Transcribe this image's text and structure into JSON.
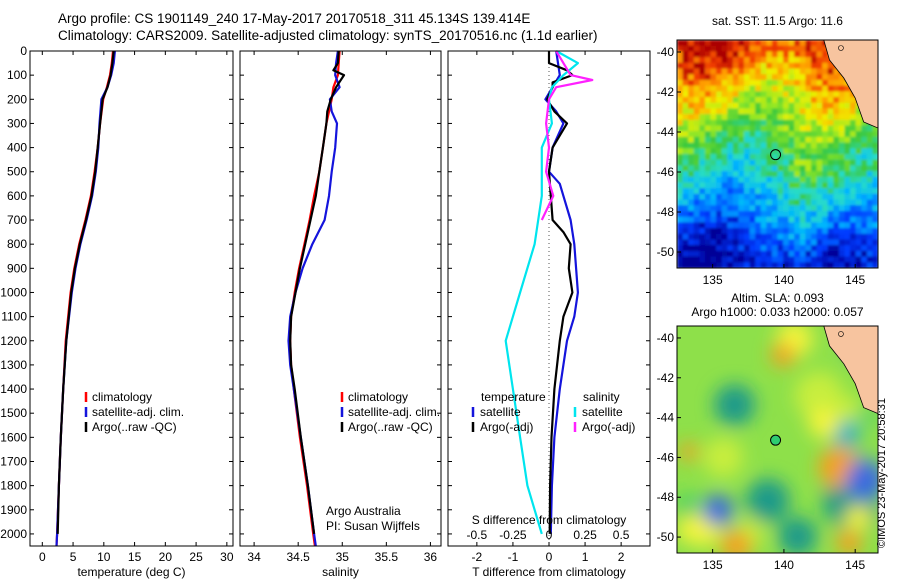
{
  "header": {
    "line1": "Argo profile: CS 1901149_240 17-May-2017 20170518_311 45.134S 139.414E",
    "line2": "Climatology: CARS2009. Satellite-adjusted climatology: synTS_20170516.nc (1.1d earlier)"
  },
  "depth_ticks": [
    "0",
    "100",
    "200",
    "300",
    "400",
    "500",
    "600",
    "700",
    "800",
    "900",
    "1000",
    "1100",
    "1200",
    "1300",
    "1400",
    "1500",
    "1600",
    "1700",
    "1800",
    "1900",
    "2000"
  ],
  "colors": {
    "climatology": "#ff0000",
    "satellite": "#1414dc",
    "argo": "#000000",
    "sal_satellite": "#00e5ee",
    "sal_argo": "#ff20ff"
  },
  "chart_data": [
    {
      "type": "line",
      "panel": "temperature",
      "xlabel": "temperature (deg C)",
      "xticks": [
        "0",
        "5",
        "10",
        "15",
        "20",
        "25",
        "30"
      ],
      "xlim": [
        -2,
        31
      ],
      "ylim": [
        2050,
        0
      ],
      "legend": [
        "climatology",
        "satellite-adj. clim.",
        "Argo(..raw -QC)"
      ],
      "series": [
        {
          "name": "climatology",
          "depth": [
            0,
            50,
            100,
            150,
            200,
            300,
            400,
            500,
            600,
            700,
            800,
            900,
            1000,
            1200,
            1400,
            1600,
            1800,
            2000,
            2050
          ],
          "values": [
            11.5,
            11.3,
            11.0,
            10.5,
            9.9,
            9.4,
            9.0,
            8.5,
            7.9,
            7.0,
            6.0,
            5.2,
            4.6,
            3.8,
            3.4,
            3.0,
            2.7,
            2.4,
            2.3
          ]
        },
        {
          "name": "satellite-adj. clim.",
          "depth": [
            0,
            50,
            100,
            150,
            200,
            300,
            400,
            500,
            600,
            700,
            800,
            900,
            1000,
            1200,
            1400,
            1600,
            1800,
            2000,
            2050
          ],
          "values": [
            11.8,
            11.6,
            11.2,
            10.6,
            9.6,
            9.3,
            9.1,
            8.7,
            8.1,
            7.2,
            6.2,
            5.4,
            4.8,
            3.9,
            3.4,
            3.0,
            2.7,
            2.4,
            2.3
          ]
        },
        {
          "name": "Argo(..raw -QC)",
          "depth": [
            0,
            50,
            100,
            150,
            200,
            300,
            400,
            500,
            600,
            700,
            800,
            900,
            1000,
            1200,
            1400,
            1600,
            1800,
            2000
          ],
          "values": [
            11.6,
            11.4,
            11.1,
            10.6,
            9.8,
            9.4,
            9.0,
            8.6,
            8.0,
            7.1,
            6.1,
            5.3,
            4.7,
            3.9,
            3.4,
            3.0,
            2.7,
            2.5
          ]
        }
      ]
    },
    {
      "type": "line",
      "panel": "salinity",
      "xlabel": "salinity",
      "xticks": [
        "34",
        "34.5",
        "35",
        "35.5",
        "36"
      ],
      "xlim": [
        33.84,
        36.12
      ],
      "ylim": [
        2050,
        0
      ],
      "legend": [
        "climatology",
        "satellite-adj. clim.",
        "Argo(..raw -QC)"
      ],
      "annotation": [
        "Argo Australia",
        "PI: Susan Wijffels"
      ],
      "series": [
        {
          "name": "climatology",
          "depth": [
            0,
            50,
            100,
            150,
            200,
            300,
            400,
            500,
            600,
            700,
            800,
            900,
            1000,
            1100,
            1200,
            1300,
            1400,
            1600,
            1800,
            2000,
            2050
          ],
          "values": [
            34.97,
            34.96,
            34.95,
            34.9,
            34.88,
            34.82,
            34.78,
            34.74,
            34.68,
            34.63,
            34.57,
            34.51,
            34.46,
            34.42,
            34.41,
            34.42,
            34.45,
            34.52,
            34.6,
            34.67,
            34.69
          ]
        },
        {
          "name": "satellite-adj. clim.",
          "depth": [
            0,
            50,
            100,
            150,
            200,
            250,
            300,
            400,
            500,
            600,
            700,
            800,
            900,
            1000,
            1100,
            1200,
            1300,
            1400,
            1600,
            1800,
            2000,
            2050
          ],
          "values": [
            34.95,
            34.93,
            34.92,
            34.97,
            34.86,
            34.88,
            34.94,
            34.92,
            34.88,
            34.85,
            34.8,
            34.66,
            34.55,
            34.47,
            34.41,
            34.39,
            34.41,
            34.45,
            34.53,
            34.61,
            34.68,
            34.7
          ]
        },
        {
          "name": "Argo(..raw -QC)",
          "depth": [
            0,
            50,
            80,
            100,
            150,
            200,
            250,
            300,
            400,
            500,
            600,
            700,
            800,
            900,
            1000,
            1100,
            1200,
            1300,
            1400,
            1600,
            1800,
            2000
          ],
          "values": [
            34.96,
            34.95,
            34.9,
            35.02,
            34.93,
            34.87,
            34.83,
            34.82,
            34.78,
            34.74,
            34.7,
            34.64,
            34.58,
            34.52,
            34.47,
            34.42,
            34.41,
            34.42,
            34.46,
            34.53,
            34.61,
            34.68
          ]
        }
      ]
    },
    {
      "type": "line",
      "panel": "difference",
      "xlabel": "T difference from climatology",
      "xlabel_top": "S difference from climatology",
      "xticks": [
        "-2",
        "-1",
        "0",
        "1",
        "2"
      ],
      "xticks_top": [
        "-0.5",
        "-0.25",
        "0",
        "0.25",
        "0.5"
      ],
      "xlim": [
        -2.8,
        2.8
      ],
      "ylim": [
        2050,
        0
      ],
      "legend_t": [
        "temperature",
        "satellite",
        "Argo(-adj)"
      ],
      "legend_s": [
        "salinity",
        "satellite",
        "Argo(-adj)"
      ],
      "series": [
        {
          "name": "satellite",
          "depth": [
            0,
            50,
            100,
            150,
            200,
            250,
            300,
            400,
            500,
            550,
            600,
            700,
            800,
            900,
            1000,
            1100,
            1200,
            1400,
            1600,
            1800,
            2000
          ],
          "values": [
            0.2,
            0.25,
            0.3,
            0.1,
            -0.1,
            0.2,
            0.4,
            0.1,
            0.0,
            0.3,
            0.4,
            0.6,
            0.7,
            0.75,
            0.8,
            0.7,
            0.5,
            0.3,
            0.15,
            0.08,
            0.05
          ]
        },
        {
          "name": "Argo(-adj)",
          "depth": [
            0,
            50,
            80,
            100,
            130,
            150,
            200,
            250,
            300,
            400,
            500,
            600,
            700,
            750,
            800,
            900,
            1000,
            1100,
            1200,
            1400,
            1600,
            1800,
            2000
          ],
          "values": [
            0.0,
            0.0,
            0.5,
            0.65,
            0.1,
            0.1,
            -0.05,
            0.15,
            0.5,
            0.1,
            0.0,
            0.05,
            0.1,
            0.4,
            0.6,
            0.55,
            0.65,
            0.4,
            0.3,
            0.15,
            0.07,
            0.03,
            0.02
          ]
        },
        {
          "name": "satellite",
          "depth": [
            0,
            50,
            100,
            150,
            200,
            300,
            400,
            600,
            800,
            1000,
            1200,
            1400,
            1600,
            1800,
            2000
          ],
          "values": [
            0.05,
            0.2,
            0.1,
            0.02,
            0.0,
            0.02,
            -0.05,
            -0.05,
            -0.1,
            -0.2,
            -0.3,
            -0.25,
            -0.2,
            -0.15,
            -0.05
          ]
        },
        {
          "name": "Argo(-adj)",
          "depth": [
            0,
            50,
            100,
            120,
            150,
            200,
            300,
            400,
            500,
            600,
            700
          ],
          "values": [
            0.05,
            0.1,
            0.15,
            0.3,
            0.05,
            0.0,
            -0.02,
            0.0,
            -0.02,
            0.03,
            -0.05
          ]
        }
      ]
    },
    {
      "type": "heatmap",
      "panel": "map-sst",
      "title": "sat. SST: 11.5  Argo: 11.6",
      "xticks": [
        "135",
        "140",
        "145"
      ],
      "yticks": [
        "-40",
        "-42",
        "-44",
        "-46",
        "-48",
        "-50"
      ],
      "xlim": [
        132.5,
        146.6
      ],
      "ylim": [
        -50.8,
        -39.4
      ],
      "float_position": {
        "lon": 139.414,
        "lat": -45.134
      }
    },
    {
      "type": "heatmap",
      "panel": "map-sla",
      "title": "Altim. SLA: 0.093",
      "subtitle": "Argo h1000: 0.033 h2000: 0.057",
      "xticks": [
        "135",
        "140",
        "145"
      ],
      "yticks": [
        "-40",
        "-42",
        "-44",
        "-46",
        "-48",
        "-50"
      ],
      "xlim": [
        132.5,
        146.6
      ],
      "ylim": [
        -50.8,
        -39.4
      ],
      "float_position": {
        "lon": 139.414,
        "lat": -45.134
      }
    }
  ],
  "footer": {
    "stamp": "©IMOS 23-May-2017 20:58:31"
  }
}
